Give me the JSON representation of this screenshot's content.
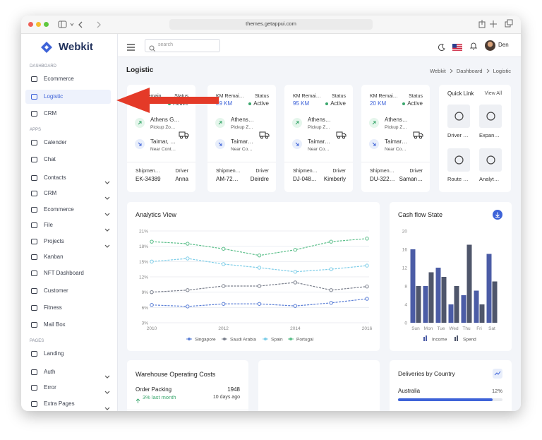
{
  "browser": {
    "url": "themes.getappui.com"
  },
  "sidebar": {
    "brand": "Webkit",
    "sections": [
      {
        "title": "DASHBOARD",
        "items": [
          {
            "label": "Ecommerce"
          },
          {
            "label": "Logistic",
            "active": true
          },
          {
            "label": "CRM"
          }
        ]
      },
      {
        "title": "APPS",
        "items": [
          {
            "label": "Calender"
          },
          {
            "label": "Chat"
          },
          {
            "label": "Contacts",
            "expand": true
          },
          {
            "label": "CRM",
            "expand": true
          },
          {
            "label": "Ecommerce",
            "expand": true
          },
          {
            "label": "File",
            "expand": true
          },
          {
            "label": "Projects",
            "expand": true
          },
          {
            "label": "Kanban"
          },
          {
            "label": "NFT Dashboard"
          },
          {
            "label": "Customer"
          },
          {
            "label": "Fitness"
          },
          {
            "label": "Mail Box"
          }
        ]
      },
      {
        "title": "PAGES",
        "items": [
          {
            "label": "Landing"
          },
          {
            "label": "Auth",
            "expand": true
          },
          {
            "label": "Error",
            "expand": true
          },
          {
            "label": "Extra Pages",
            "expand": true
          }
        ]
      }
    ]
  },
  "header": {
    "search_placeholder": "search",
    "user": "Den"
  },
  "page": {
    "title": "Logistic",
    "breadcrumb": [
      "Webkit",
      "Dashboard",
      "Logistic"
    ]
  },
  "shipments": [
    {
      "km_label": "KM Remain",
      "status_label": "Status",
      "km": "KM",
      "status": "Active",
      "from_name": "Athens G…",
      "from_note": "Pickup Zo…",
      "to_name": "Taimar, …",
      "to_note": "Near Cont…",
      "shipment_label": "Shipmen…",
      "driver_label": "Driver",
      "shipment_id": "EK-34389",
      "driver": "Anna"
    },
    {
      "km_label": "KM Remai…",
      "status_label": "Status",
      "km": "29 KM",
      "status": "Active",
      "from_name": "Athens…",
      "from_note": "Pickup Z…",
      "to_name": "Taimar…",
      "to_note": "Near Co…",
      "shipment_label": "Shipmen…",
      "driver_label": "Driver",
      "shipment_id": "AM-72…",
      "driver": "Deirdre"
    },
    {
      "km_label": "KM Remai…",
      "status_label": "Status",
      "km": "95 KM",
      "status": "Active",
      "from_name": "Athens…",
      "from_note": "Pickup Z…",
      "to_name": "Taimar…",
      "to_note": "Near Co…",
      "shipment_label": "Shipmen…",
      "driver_label": "Driver",
      "shipment_id": "DJ-048…",
      "driver": "Kimberly"
    },
    {
      "km_label": "KM Remai…",
      "status_label": "Status",
      "km": "20 KM",
      "status": "Active",
      "from_name": "Athens…",
      "from_note": "Pickup Z…",
      "to_name": "Taimar…",
      "to_note": "Near Co…",
      "shipment_label": "Shipmen…",
      "driver_label": "Driver",
      "shipment_id": "DU-322…",
      "driver": "Saman…"
    }
  ],
  "quick_link": {
    "title": "Quick Link",
    "view_all": "View All",
    "items": [
      "Driver …",
      "Expan…",
      "Route …",
      "Analyt…"
    ]
  },
  "chart_data": [
    {
      "type": "line",
      "title": "Analytics View",
      "x": [
        2010,
        2011,
        2012,
        2013,
        2014,
        2015,
        2016
      ],
      "xlim": [
        2010,
        2016
      ],
      "xticks": [
        2010,
        2012,
        2014,
        2016
      ],
      "ylim": [
        3,
        21
      ],
      "yticks": [
        {
          "value": 3,
          "label": "3%"
        },
        {
          "value": 6,
          "label": "6%"
        },
        {
          "value": 9,
          "label": "9%"
        },
        {
          "value": 12,
          "label": "12%"
        },
        {
          "value": 15,
          "label": "15%"
        },
        {
          "value": 18,
          "label": "18%"
        },
        {
          "value": 21,
          "label": "21%"
        }
      ],
      "grid": true,
      "legend": "bottom",
      "series": [
        {
          "name": "Singapore",
          "color": "#5b7fd6",
          "values": [
            6.5,
            6.2,
            6.7,
            6.7,
            6.3,
            6.9,
            7.7
          ]
        },
        {
          "name": "Saudi Arabia",
          "color": "#7a7f8c",
          "values": [
            9.0,
            9.4,
            10.2,
            10.2,
            10.9,
            9.4,
            10.1
          ]
        },
        {
          "name": "Spain",
          "color": "#7dcde8",
          "values": [
            15.0,
            15.6,
            14.5,
            13.8,
            13.0,
            13.5,
            14.2
          ]
        },
        {
          "name": "Portugal",
          "color": "#5cbf8a",
          "values": [
            18.9,
            18.5,
            17.5,
            16.2,
            17.3,
            18.9,
            19.5
          ]
        }
      ]
    },
    {
      "type": "bar",
      "title": "Cash flow State",
      "categories": [
        "Sun",
        "Mon",
        "Tue",
        "Wed",
        "Thu",
        "Fri",
        "Sat"
      ],
      "ylim": [
        0,
        20
      ],
      "yticks": [
        0,
        4,
        8,
        12,
        16,
        20
      ],
      "legend": "bottom",
      "series": [
        {
          "name": "Income",
          "color": "#4b5ca6",
          "values": [
            16,
            8,
            12,
            4,
            6,
            7,
            15
          ]
        },
        {
          "name": "Spend",
          "color": "#4f566b",
          "values": [
            8,
            11,
            10,
            8,
            17,
            4,
            9
          ]
        }
      ]
    }
  ],
  "warehouse": {
    "title": "Warehouse Operating Costs",
    "rows": [
      {
        "name": "Order Packing",
        "value": 1948,
        "change": "3% last month",
        "time": "10 days ago"
      }
    ]
  },
  "deliveries": {
    "title": "Deliveries by Country",
    "rows": [
      {
        "country": "Australia",
        "share": "12%"
      }
    ]
  }
}
